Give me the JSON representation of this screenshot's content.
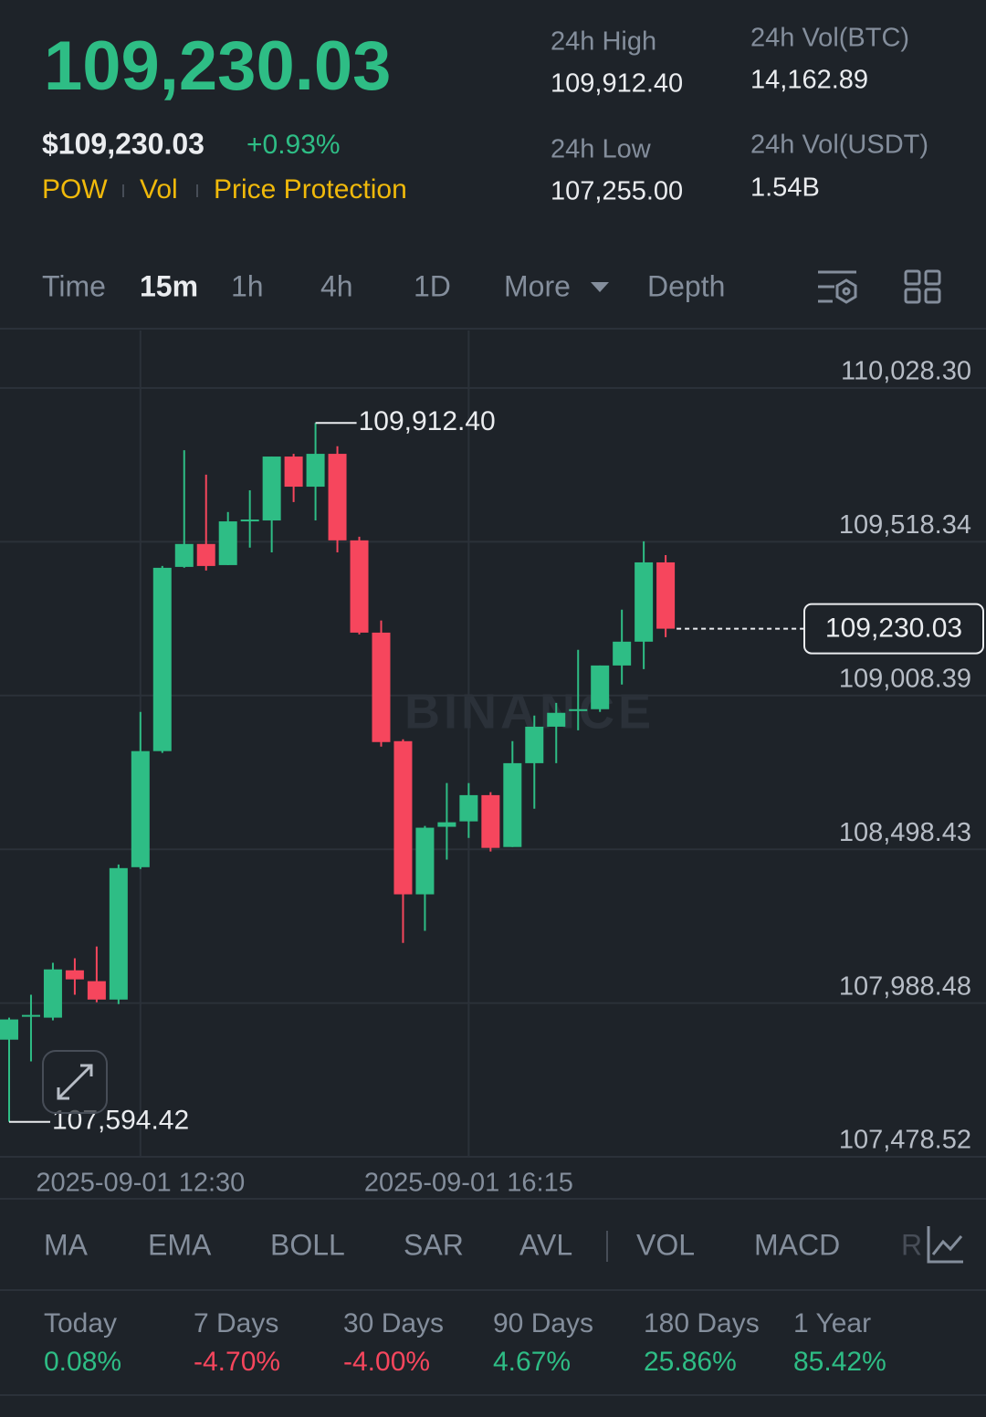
{
  "header": {
    "price": "109,230.03",
    "price_usd": "$109,230.03",
    "change": "+0.93%",
    "tags": [
      "POW",
      "Vol",
      "Price Protection"
    ],
    "stats": [
      {
        "label": "24h High",
        "value": "109,912.40"
      },
      {
        "label": "24h Vol(BTC)",
        "value": "14,162.89"
      },
      {
        "label": "24h Low",
        "value": "107,255.00"
      },
      {
        "label": "24h Vol(USDT)",
        "value": "1.54B"
      }
    ]
  },
  "interval_tabs": {
    "items": [
      "Time",
      "15m",
      "1h",
      "4h",
      "1D",
      "More",
      "Depth"
    ],
    "active": "15m"
  },
  "chart_data": {
    "type": "candlestick",
    "categories": [
      null,
      null,
      null,
      null,
      null,
      null,
      "2025-09-01 12:30",
      null,
      null,
      null,
      null,
      null,
      null,
      null,
      null,
      null,
      null,
      null,
      null,
      null,
      null,
      "2025-09-01 16:15",
      null,
      null,
      null,
      null,
      null,
      null,
      null,
      null,
      null
    ],
    "open": [
      107867,
      107943,
      107940,
      108097,
      108061,
      108000,
      108439,
      108824,
      109435,
      109511,
      109441,
      109586,
      109589,
      109801,
      109701,
      109810,
      109523,
      109217,
      108857,
      108349,
      108573,
      108591,
      108678,
      108506,
      108784,
      108905,
      108957,
      108963,
      109108,
      109187,
      109450
    ],
    "high": [
      107940,
      108016,
      108122,
      108137,
      108176,
      108448,
      108954,
      109438,
      109822,
      109741,
      109617,
      109689,
      109801,
      109810,
      109912.4,
      109835,
      109535,
      109257,
      108863,
      108576,
      108718,
      108718,
      108688,
      108857,
      108942,
      108984,
      109160,
      109108,
      109293,
      109520,
      109474
    ],
    "low": [
      107594.42,
      107795,
      107931,
      108016,
      107991,
      107985,
      108433,
      108818,
      109432,
      109423,
      109441,
      109499,
      109483,
      109650,
      109589,
      109483,
      109211,
      108839,
      108188,
      108228,
      108464,
      108536,
      108491,
      108506,
      108633,
      108784,
      108893,
      108954,
      109045,
      109096,
      109202
    ],
    "close": [
      107934,
      107949,
      108100,
      108067,
      108000,
      108436,
      108824,
      109432,
      109511,
      109438,
      109586,
      109592,
      109801,
      109701,
      109810,
      109523,
      109217,
      108854,
      108349,
      108570,
      108588,
      108678,
      108503,
      108784,
      108905,
      108951,
      108963,
      109108,
      109187,
      109450,
      109230.03
    ],
    "up_color": "#2ebd85",
    "down_color": "#f6465d",
    "ylim": [
      107478.52,
      110219
    ],
    "yticks": [
      {
        "value": 107478.52,
        "label": "107,478.52"
      },
      {
        "value": 107988.48,
        "label": "107,988.48"
      },
      {
        "value": 108498.43,
        "label": "108,498.43"
      },
      {
        "value": 109008.39,
        "label": "109,008.39"
      },
      {
        "value": 109518.34,
        "label": "109,518.34"
      },
      {
        "value": 110028.3,
        "label": "110,028.30"
      }
    ],
    "grid": true,
    "last_price": {
      "value": 109230.03,
      "label": "109,230.03"
    },
    "annotations": [
      {
        "value": 109912.4,
        "label": "109,912.40"
      },
      {
        "value": 107594.42,
        "label": "107,594.42"
      }
    ],
    "watermark": "BINANCE"
  },
  "indicators": [
    "MA",
    "EMA",
    "BOLL",
    "SAR",
    "AVL",
    "VOL",
    "MACD",
    "R"
  ],
  "performance": [
    {
      "period": "Today",
      "value": "0.08%",
      "color": "#2ebd85"
    },
    {
      "period": "7 Days",
      "value": "-4.70%",
      "color": "#f6465d"
    },
    {
      "period": "30 Days",
      "value": "-4.00%",
      "color": "#f6465d"
    },
    {
      "period": "90 Days",
      "value": "4.67%",
      "color": "#2ebd85"
    },
    {
      "period": "180 Days",
      "value": "25.86%",
      "color": "#2ebd85"
    },
    {
      "period": "1 Year",
      "value": "85.42%",
      "color": "#2ebd85"
    }
  ]
}
